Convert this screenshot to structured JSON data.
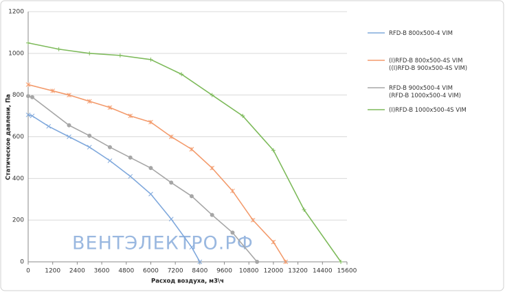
{
  "chart_data": {
    "type": "line",
    "x_label": "Расход воздуха, м3\\ч",
    "y_label": "Статическое давлени, Па",
    "watermark": "ВЕНТЭЛЕКТРО.РФ",
    "xlim": [
      0,
      15600
    ],
    "ylim": [
      0,
      1200
    ],
    "xticks": [
      0,
      1200,
      2400,
      3600,
      4800,
      6000,
      7200,
      8400,
      9600,
      10800,
      12000,
      13200,
      14400,
      15600
    ],
    "yticks": [
      0,
      200,
      400,
      600,
      800,
      1000,
      1200
    ],
    "grid": true,
    "series": [
      {
        "name": "RFD-B 800x500-4 VIM",
        "color": "#7fa8dc",
        "marker": "x",
        "x": [
          0,
          200,
          1000,
          2000,
          3000,
          4000,
          5000,
          6000,
          7000,
          8000,
          8400
        ],
        "values": [
          705,
          700,
          650,
          600,
          550,
          485,
          410,
          325,
          205,
          70,
          0
        ]
      },
      {
        "name": "(I)RFD-B 800x500-4S VIM\n((I)RFD-B 900x500-4S VIM)",
        "color": "#f39a6b",
        "marker": "star",
        "x": [
          0,
          1200,
          2000,
          3000,
          4000,
          5000,
          6000,
          7000,
          8000,
          9000,
          10000,
          11000,
          12000,
          12600
        ],
        "values": [
          850,
          820,
          800,
          770,
          740,
          700,
          670,
          600,
          540,
          450,
          340,
          200,
          95,
          0
        ]
      },
      {
        "name": "RFD-B 900x500-4 VIM\n(RFD-B 1000x500-4 VIM)",
        "color": "#a6a6a6",
        "marker": "circle",
        "x": [
          0,
          200,
          2000,
          3000,
          4000,
          5000,
          6000,
          7000,
          8000,
          9000,
          10000,
          11200
        ],
        "values": [
          795,
          790,
          655,
          605,
          550,
          500,
          450,
          380,
          315,
          225,
          140,
          0
        ]
      },
      {
        "name": "(I)RFD-B 1000x500-4S VIM",
        "color": "#7dba5a",
        "marker": "plus",
        "x": [
          0,
          1500,
          3000,
          4500,
          6000,
          7500,
          9000,
          10500,
          12000,
          13500,
          15300
        ],
        "values": [
          1050,
          1020,
          1000,
          990,
          970,
          900,
          800,
          700,
          535,
          250,
          0
        ]
      }
    ]
  }
}
